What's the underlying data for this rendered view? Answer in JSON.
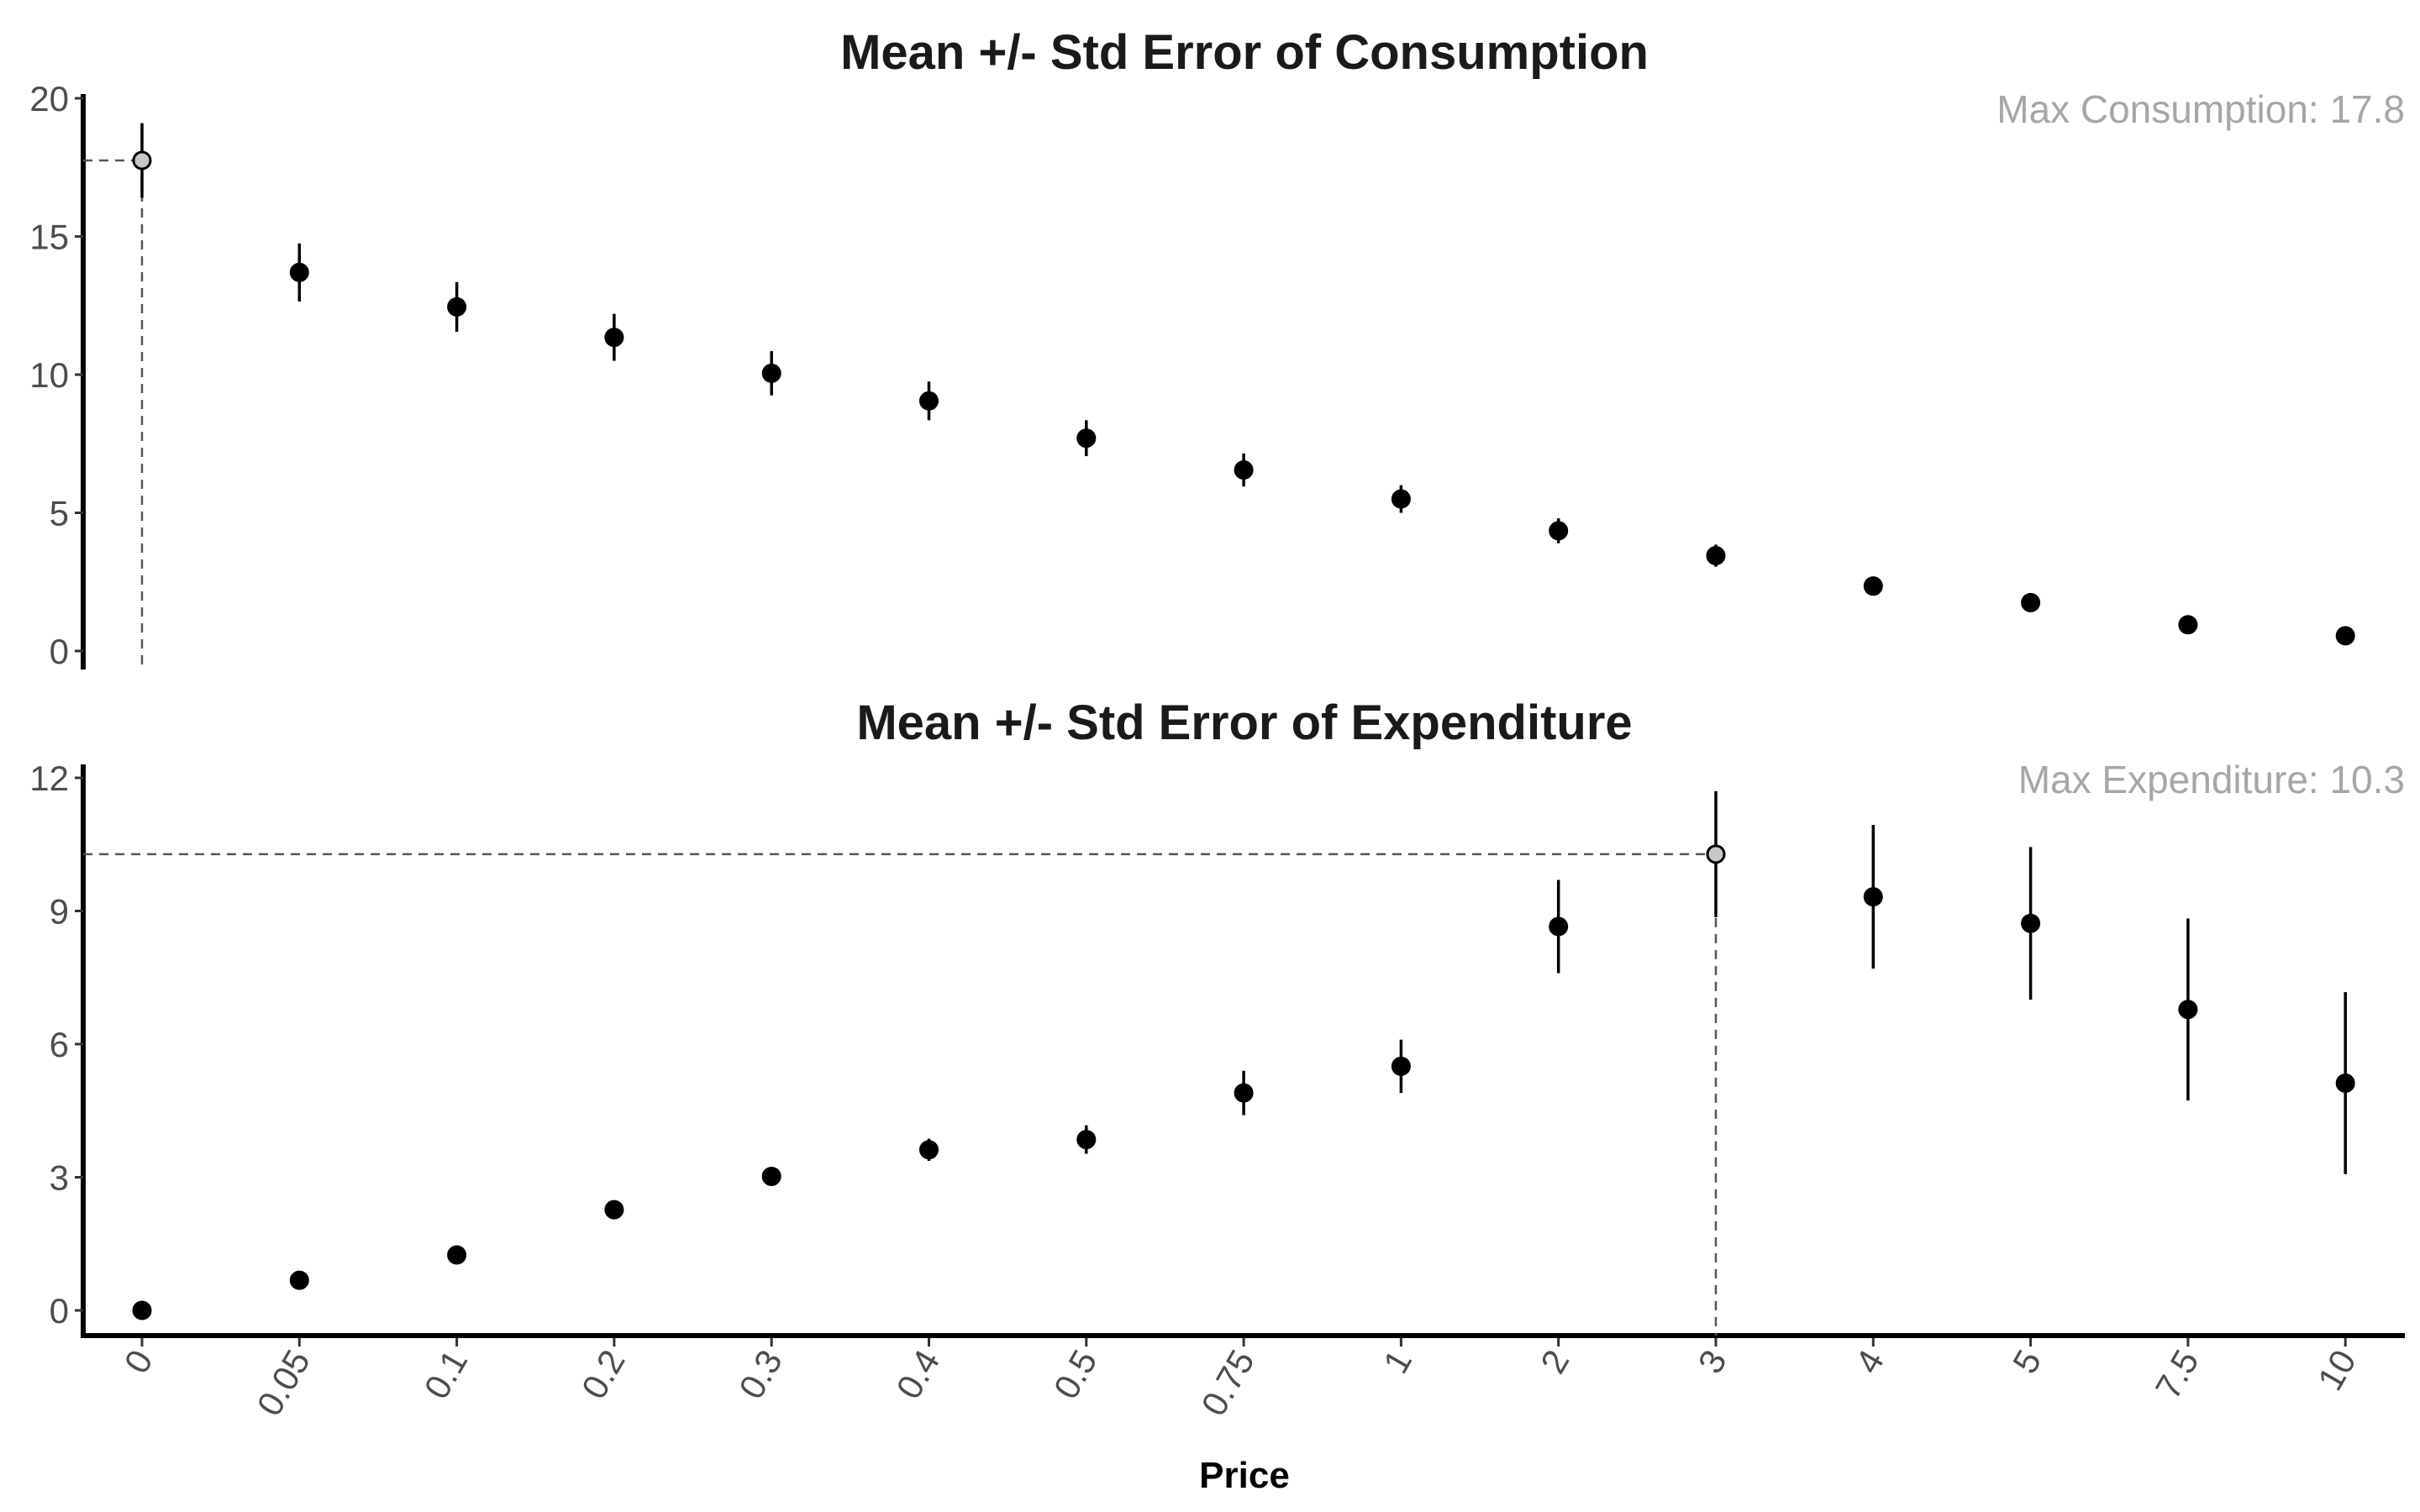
{
  "chart_data": [
    {
      "type": "scatter",
      "title": "Mean +/- Std Error of Consumption",
      "annotation": "Max Consumption: 17.8",
      "ylim": [
        0,
        20
      ],
      "yticks": [
        0,
        5,
        10,
        15,
        20
      ],
      "categories": [
        "0",
        "0.05",
        "0.1",
        "0.2",
        "0.3",
        "0.4",
        "0.5",
        "0.75",
        "1",
        "2",
        "3",
        "4",
        "5",
        "7.5",
        "10"
      ],
      "series": [
        {
          "values": [
            17.75,
            13.7,
            12.45,
            11.35,
            10.05,
            9.05,
            7.7,
            6.55,
            5.5,
            4.35,
            3.45,
            2.35,
            1.75,
            0.95,
            0.55
          ],
          "se": [
            1.35,
            1.05,
            0.9,
            0.85,
            0.8,
            0.7,
            0.65,
            0.6,
            0.5,
            0.45,
            0.4,
            0.3,
            0.2,
            0.15,
            0.1
          ]
        }
      ],
      "highlight_index": 0,
      "highlight_color": "#c8c8c8",
      "point_color": "#000000",
      "grid": false
    },
    {
      "type": "scatter",
      "title": "Mean +/- Std Error of Expenditure",
      "annotation": "Max Expenditure: 10.3",
      "ylim": [
        -0.6,
        12.3
      ],
      "yticks": [
        0,
        3,
        6,
        9,
        12
      ],
      "categories": [
        "0",
        "0.05",
        "0.1",
        "0.2",
        "0.3",
        "0.4",
        "0.5",
        "0.75",
        "1",
        "2",
        "3",
        "4",
        "5",
        "7.5",
        "10"
      ],
      "series": [
        {
          "values": [
            0.0,
            0.68,
            1.25,
            2.27,
            3.02,
            3.62,
            3.85,
            4.9,
            5.5,
            8.65,
            10.28,
            9.32,
            8.72,
            6.78,
            5.12
          ],
          "se": [
            0.0,
            0.05,
            0.05,
            0.1,
            0.15,
            0.25,
            0.32,
            0.5,
            0.6,
            1.05,
            1.42,
            1.62,
            1.72,
            2.05,
            2.05
          ]
        }
      ],
      "highlight_index": 10,
      "highlight_color": "#c8c8c8",
      "point_color": "#000000",
      "xlabel": "Price",
      "grid": false
    }
  ]
}
